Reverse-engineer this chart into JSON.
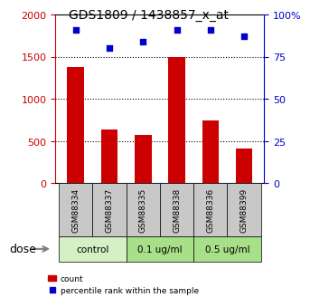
{
  "title": "GDS1809 / 1438857_x_at",
  "categories": [
    "GSM88334",
    "GSM88337",
    "GSM88335",
    "GSM88338",
    "GSM88336",
    "GSM88399"
  ],
  "bar_values": [
    1380,
    640,
    570,
    1500,
    740,
    410
  ],
  "percentile_values": [
    91,
    80,
    84,
    91,
    91,
    87
  ],
  "bar_color": "#cc0000",
  "dot_color": "#0000cc",
  "ylim_left": [
    0,
    2000
  ],
  "ylim_right": [
    0,
    100
  ],
  "yticks_left": [
    0,
    500,
    1000,
    1500,
    2000
  ],
  "yticks_right": [
    0,
    25,
    50,
    75,
    100
  ],
  "yticklabels_right": [
    "0",
    "25",
    "50",
    "75",
    "100%"
  ],
  "dose_groups": [
    {
      "label": "control",
      "indices": [
        0,
        1
      ],
      "color": "#d0f0c0"
    },
    {
      "label": "0.1 ug/ml",
      "indices": [
        2,
        3
      ],
      "color": "#90ee90"
    },
    {
      "label": "0.5 ug/ml",
      "indices": [
        4,
        5
      ],
      "color": "#90ee90"
    }
  ],
  "dose_label": "dose",
  "group_colors": [
    "#d0f0c0",
    "#b0e0b0",
    "#90ee90"
  ],
  "bg_color": "#ffffff",
  "tick_color_left": "#cc0000",
  "tick_color_right": "#0000cc",
  "grid_dotted": true
}
